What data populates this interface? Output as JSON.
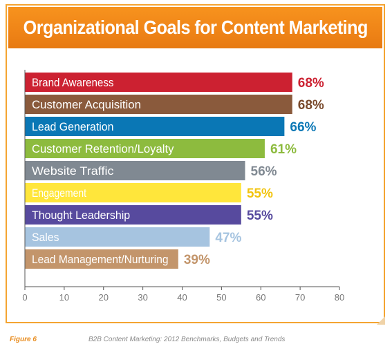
{
  "chart_data": {
    "type": "bar",
    "orientation": "horizontal",
    "title": "Organizational Goals for Content Marketing",
    "categories": [
      "Brand Awareness",
      "Customer Acquisition",
      "Lead Generation",
      "Customer Retention/Loyalty",
      "Website Traffic",
      "Engagement",
      "Thought Leadership",
      "Sales",
      "Lead Management/Nurturing"
    ],
    "values": [
      68,
      68,
      66,
      61,
      56,
      55,
      55,
      47,
      39
    ],
    "value_labels": [
      "68%",
      "68%",
      "66%",
      "61%",
      "56%",
      "55%",
      "55%",
      "47%",
      "39%"
    ],
    "colors": [
      "#cc2131",
      "#8a5a3c",
      "#0a77b5",
      "#8dbb3e",
      "#808992",
      "#ffe63b",
      "#574a9e",
      "#a6c4e0",
      "#c3956b"
    ],
    "label_colors": [
      "#cc2131",
      "#7a4a2c",
      "#0a77b5",
      "#8dbb3e",
      "#808992",
      "#f2c40f",
      "#574a9e",
      "#a6c4e0",
      "#c3956b"
    ],
    "xlim": [
      0,
      80
    ],
    "xticks": [
      0,
      10,
      20,
      30,
      40,
      50,
      60,
      70,
      80
    ],
    "grid": false
  },
  "footer": {
    "figure": "Figure 6",
    "source": "B2B Content Marketing: 2012 Benchmarks, Budgets and Trends"
  }
}
